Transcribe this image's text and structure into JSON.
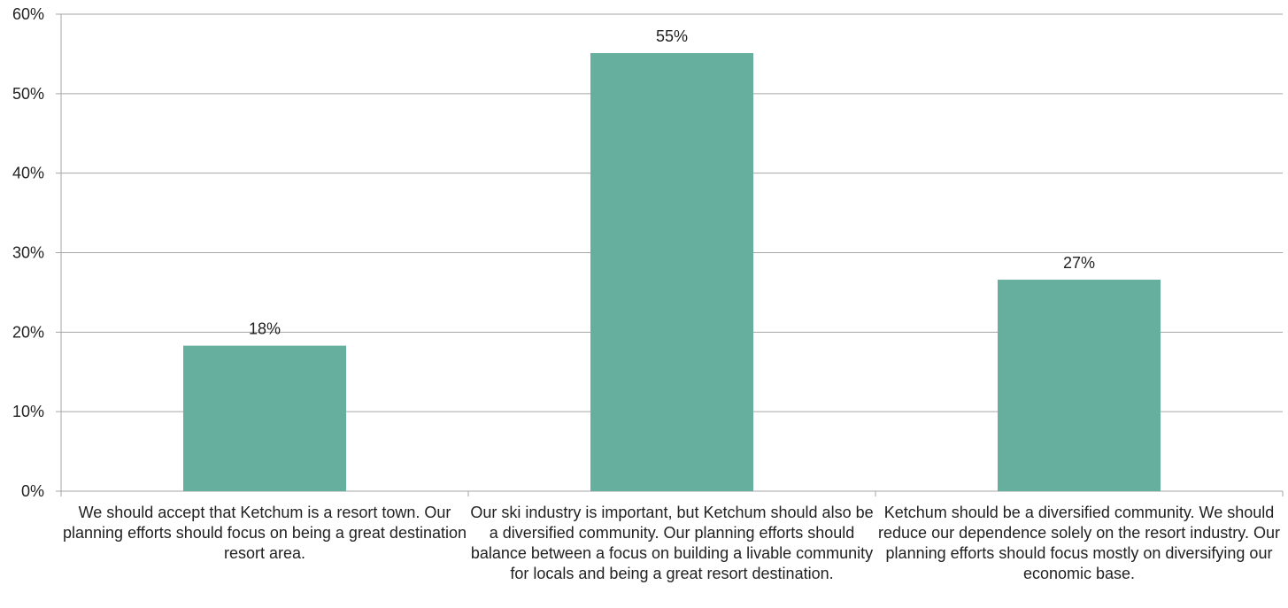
{
  "chart_data": {
    "type": "bar",
    "categories": [
      "We should accept that Ketchum is a resort town. Our planning efforts should focus on being a great destination resort area.",
      "Our ski industry is important, but Ketchum should also be a diversified community. Our planning efforts should balance between a focus on building a livable community for locals and being a great resort destination.",
      "Ketchum should be a diversified community. We should reduce our dependence solely on the resort industry. Our planning efforts should focus mostly on diversifying our economic base."
    ],
    "values": [
      18.3,
      55.1,
      26.6
    ],
    "data_labels": [
      "18%",
      "55%",
      "27%"
    ],
    "y_ticks": [
      "0%",
      "10%",
      "20%",
      "30%",
      "40%",
      "50%",
      "60%"
    ],
    "ylim": [
      0,
      60
    ],
    "grid": true,
    "bar_color": "#66ae9e",
    "grid_color": "#a6a6a6"
  }
}
